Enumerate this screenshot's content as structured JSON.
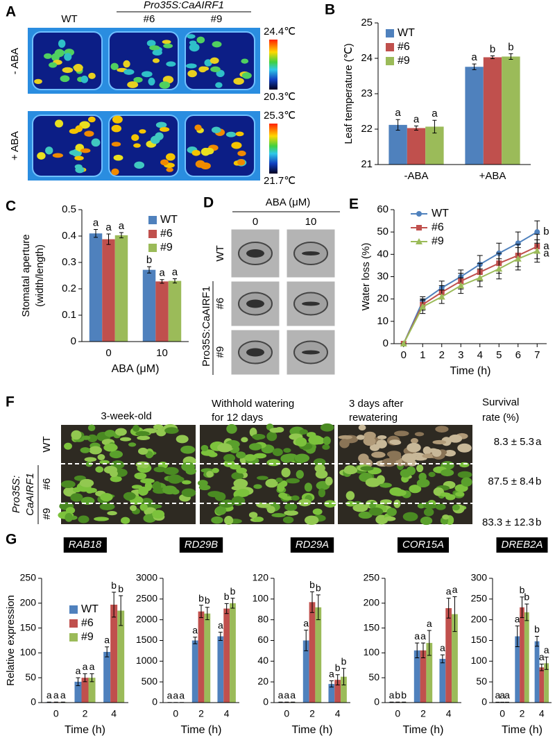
{
  "panel_labels": [
    "A",
    "B",
    "C",
    "D",
    "E",
    "F",
    "G"
  ],
  "thermal_images": {
    "columns": [
      "WT",
      "#6",
      "#9"
    ],
    "transgene": "Pro35S:CaAIRF1",
    "rows": [
      "- ABA",
      "+ ABA"
    ],
    "scale_labels": [
      [
        "24.4℃",
        "20.3℃"
      ],
      [
        "25.3℃",
        "21.7℃"
      ]
    ]
  },
  "stomata_images": {
    "title": "ABA (μM)",
    "columns": [
      "0",
      "10"
    ],
    "rows": [
      "WT",
      "#6",
      "#9"
    ],
    "transgene": "Pro35S:CaAIRF1"
  },
  "drought_images": {
    "columns": [
      [
        "3-week-old"
      ],
      [
        "Withhold watering",
        "for 12 days"
      ],
      [
        "3 days after",
        "rewatering"
      ]
    ],
    "survival_header": [
      "Survival",
      "rate (%)"
    ],
    "rows": [
      "WT",
      "#6",
      "#9"
    ],
    "transgene": [
      "Pro35S:",
      "CaAIRF1"
    ],
    "survival": [
      "8.3 ± 5.3",
      "87.5 ± 8.4",
      "83.3 ± 12.3"
    ],
    "survival_letters": [
      "a",
      "b",
      "b"
    ]
  },
  "chart_data": [
    {
      "type": "bar",
      "ylabel": "Leaf temperature (℃)",
      "categories": [
        "-ABA",
        "+ABA"
      ],
      "series": [
        {
          "name": "WT",
          "color": "#4f81bd",
          "values": [
            22.12,
            23.76
          ],
          "errors": [
            0.15,
            0.08
          ],
          "letters": [
            "a",
            "a"
          ]
        },
        {
          "name": "#6",
          "color": "#c0504d",
          "values": [
            22.03,
            24.03
          ],
          "errors": [
            0.06,
            0.04
          ],
          "letters": [
            "a",
            "b"
          ]
        },
        {
          "name": "#9",
          "color": "#9bbb59",
          "values": [
            22.07,
            24.05
          ],
          "errors": [
            0.18,
            0.08
          ],
          "letters": [
            "a",
            "b"
          ]
        }
      ],
      "ylim": [
        21,
        25
      ],
      "yticks": [
        21,
        22,
        23,
        24,
        25
      ],
      "legend": "upper left"
    },
    {
      "type": "bar",
      "ylabel": [
        "Stomatal aperture",
        "(width/length)"
      ],
      "xlabel": "ABA (μM)",
      "categories": [
        "0",
        "10"
      ],
      "series": [
        {
          "name": "WT",
          "color": "#4f81bd",
          "values": [
            0.41,
            0.272
          ],
          "errors": [
            0.015,
            0.012
          ],
          "letters": [
            "a",
            "b"
          ]
        },
        {
          "name": "#6",
          "color": "#c0504d",
          "values": [
            0.388,
            0.228
          ],
          "errors": [
            0.02,
            0.007
          ],
          "letters": [
            "a",
            "a"
          ]
        },
        {
          "name": "#9",
          "color": "#9bbb59",
          "values": [
            0.403,
            0.23
          ],
          "errors": [
            0.01,
            0.008
          ],
          "letters": [
            "a",
            "a"
          ]
        }
      ],
      "ylim": [
        0,
        0.5
      ],
      "yticks": [
        0,
        0.1,
        0.2,
        0.3,
        0.4,
        0.5
      ],
      "legend": "upper right"
    },
    {
      "type": "line",
      "ylabel": "Water loss (%)",
      "xlabel": "Time (h)",
      "x": [
        0,
        1,
        2,
        3,
        4,
        5,
        6,
        7
      ],
      "series": [
        {
          "name": "WT",
          "color": "#4f81bd",
          "marker": "circle",
          "values": [
            0,
            19,
            25,
            30,
            35.5,
            40.5,
            45,
            50
          ],
          "errors": [
            0,
            2,
            3,
            3,
            4,
            4.5,
            5,
            5
          ],
          "letter": "b"
        },
        {
          "name": "#6",
          "color": "#c0504d",
          "marker": "square",
          "values": [
            0,
            17.5,
            23,
            28,
            32,
            36,
            39.5,
            43.5
          ],
          "errors": [
            0,
            2.5,
            3,
            3.5,
            4,
            4.5,
            5,
            5.5
          ],
          "letter": "a"
        },
        {
          "name": "#9",
          "color": "#9bbb59",
          "marker": "triangle",
          "values": [
            0,
            16.5,
            21,
            26,
            29.5,
            33.5,
            38,
            41.5
          ],
          "errors": [
            0,
            3,
            3,
            3.5,
            4,
            4.5,
            5,
            5
          ],
          "letter": "a"
        }
      ],
      "xlim": [
        -0.5,
        7.5
      ],
      "xticks": [
        0,
        1,
        2,
        3,
        4,
        5,
        6,
        7
      ],
      "ylim": [
        0,
        60
      ],
      "yticks": [
        0,
        10,
        20,
        30,
        40,
        50,
        60
      ],
      "legend": "upper left"
    },
    {
      "type": "bar",
      "title": "RAB18",
      "ylabel": "Relative expression",
      "xlabel": "Time (h)",
      "categories": [
        "0",
        "2",
        "4"
      ],
      "series": [
        {
          "name": "WT",
          "color": "#4f81bd",
          "values": [
            1,
            42,
            102
          ],
          "errors": [
            0,
            8,
            10
          ],
          "letters": [
            "a",
            "a",
            "a"
          ]
        },
        {
          "name": "#6",
          "color": "#c0504d",
          "values": [
            1,
            50,
            197
          ],
          "errors": [
            0,
            8,
            25
          ],
          "letters": [
            "a",
            "a",
            "b"
          ]
        },
        {
          "name": "#9",
          "color": "#9bbb59",
          "values": [
            1,
            50,
            185
          ],
          "errors": [
            0,
            8,
            30
          ],
          "letters": [
            "a",
            "a",
            "b"
          ]
        }
      ],
      "ylim": [
        0,
        250
      ],
      "yticks": [
        0,
        50,
        100,
        150,
        200,
        250
      ],
      "legend": "center left"
    },
    {
      "type": "bar",
      "title": "RD29B",
      "xlabel": "Time (h)",
      "categories": [
        "0",
        "2",
        "4"
      ],
      "series": [
        {
          "color": "#4f81bd",
          "values": [
            5,
            1500,
            1600
          ],
          "errors": [
            0,
            80,
            100
          ],
          "letters": [
            "a",
            "a",
            "a"
          ]
        },
        {
          "color": "#c0504d",
          "values": [
            5,
            2200,
            2270
          ],
          "errors": [
            0,
            150,
            120
          ],
          "letters": [
            "a",
            "b",
            "b"
          ]
        },
        {
          "color": "#9bbb59",
          "values": [
            5,
            2150,
            2400
          ],
          "errors": [
            0,
            150,
            120
          ],
          "letters": [
            "a",
            "b",
            "b"
          ]
        }
      ],
      "ylim": [
        0,
        3000
      ],
      "yticks": [
        0,
        500,
        1000,
        1500,
        2000,
        2500,
        3000
      ]
    },
    {
      "type": "bar",
      "title": "RD29A",
      "xlabel": "Time (h)",
      "categories": [
        "0",
        "2",
        "4"
      ],
      "series": [
        {
          "color": "#4f81bd",
          "values": [
            0.5,
            60,
            18
          ],
          "errors": [
            0,
            10,
            3
          ],
          "letters": [
            "a",
            "a",
            "a"
          ]
        },
        {
          "color": "#c0504d",
          "values": [
            0.5,
            97,
            22
          ],
          "errors": [
            0,
            10,
            5
          ],
          "letters": [
            "a",
            "b",
            "b"
          ]
        },
        {
          "color": "#9bbb59",
          "values": [
            0.5,
            92,
            25
          ],
          "errors": [
            0,
            12,
            8
          ],
          "letters": [
            "a",
            "b",
            "b"
          ]
        }
      ],
      "ylim": [
        0,
        120
      ],
      "yticks": [
        0,
        20,
        40,
        60,
        80,
        100,
        120
      ]
    },
    {
      "type": "bar",
      "title": "COR15A",
      "xlabel": "Time (h)",
      "categories": [
        "0",
        "2",
        "4"
      ],
      "series": [
        {
          "color": "#4f81bd",
          "values": [
            1,
            105,
            88
          ],
          "errors": [
            0,
            15,
            8
          ],
          "letters": [
            "a",
            "a",
            "a"
          ]
        },
        {
          "color": "#c0504d",
          "values": [
            1,
            105,
            190
          ],
          "errors": [
            0,
            15,
            20
          ],
          "letters": [
            "b",
            "a",
            "a"
          ]
        },
        {
          "color": "#9bbb59",
          "values": [
            1,
            120,
            178
          ],
          "errors": [
            0,
            25,
            35
          ],
          "letters": [
            "b",
            "a",
            "a"
          ]
        }
      ],
      "ylim": [
        0,
        250
      ],
      "yticks": [
        0,
        50,
        100,
        150,
        200,
        250
      ]
    },
    {
      "type": "bar",
      "title": "DREB2A",
      "xlabel": "Time (h)",
      "categories": [
        "0",
        "2",
        "4"
      ],
      "series": [
        {
          "color": "#4f81bd",
          "values": [
            1,
            160,
            148
          ],
          "errors": [
            0,
            25,
            12
          ],
          "letters": [
            "a",
            "a",
            "b"
          ]
        },
        {
          "color": "#c0504d",
          "values": [
            1,
            230,
            85
          ],
          "errors": [
            0,
            25,
            8
          ],
          "letters": [
            "a",
            "b",
            "a"
          ]
        },
        {
          "color": "#9bbb59",
          "values": [
            1,
            218,
            95
          ],
          "errors": [
            0,
            20,
            15
          ],
          "letters": [
            "a",
            "b",
            "a"
          ]
        }
      ],
      "ylim": [
        0,
        300
      ],
      "yticks": [
        0,
        50,
        100,
        150,
        200,
        250,
        300
      ]
    }
  ]
}
